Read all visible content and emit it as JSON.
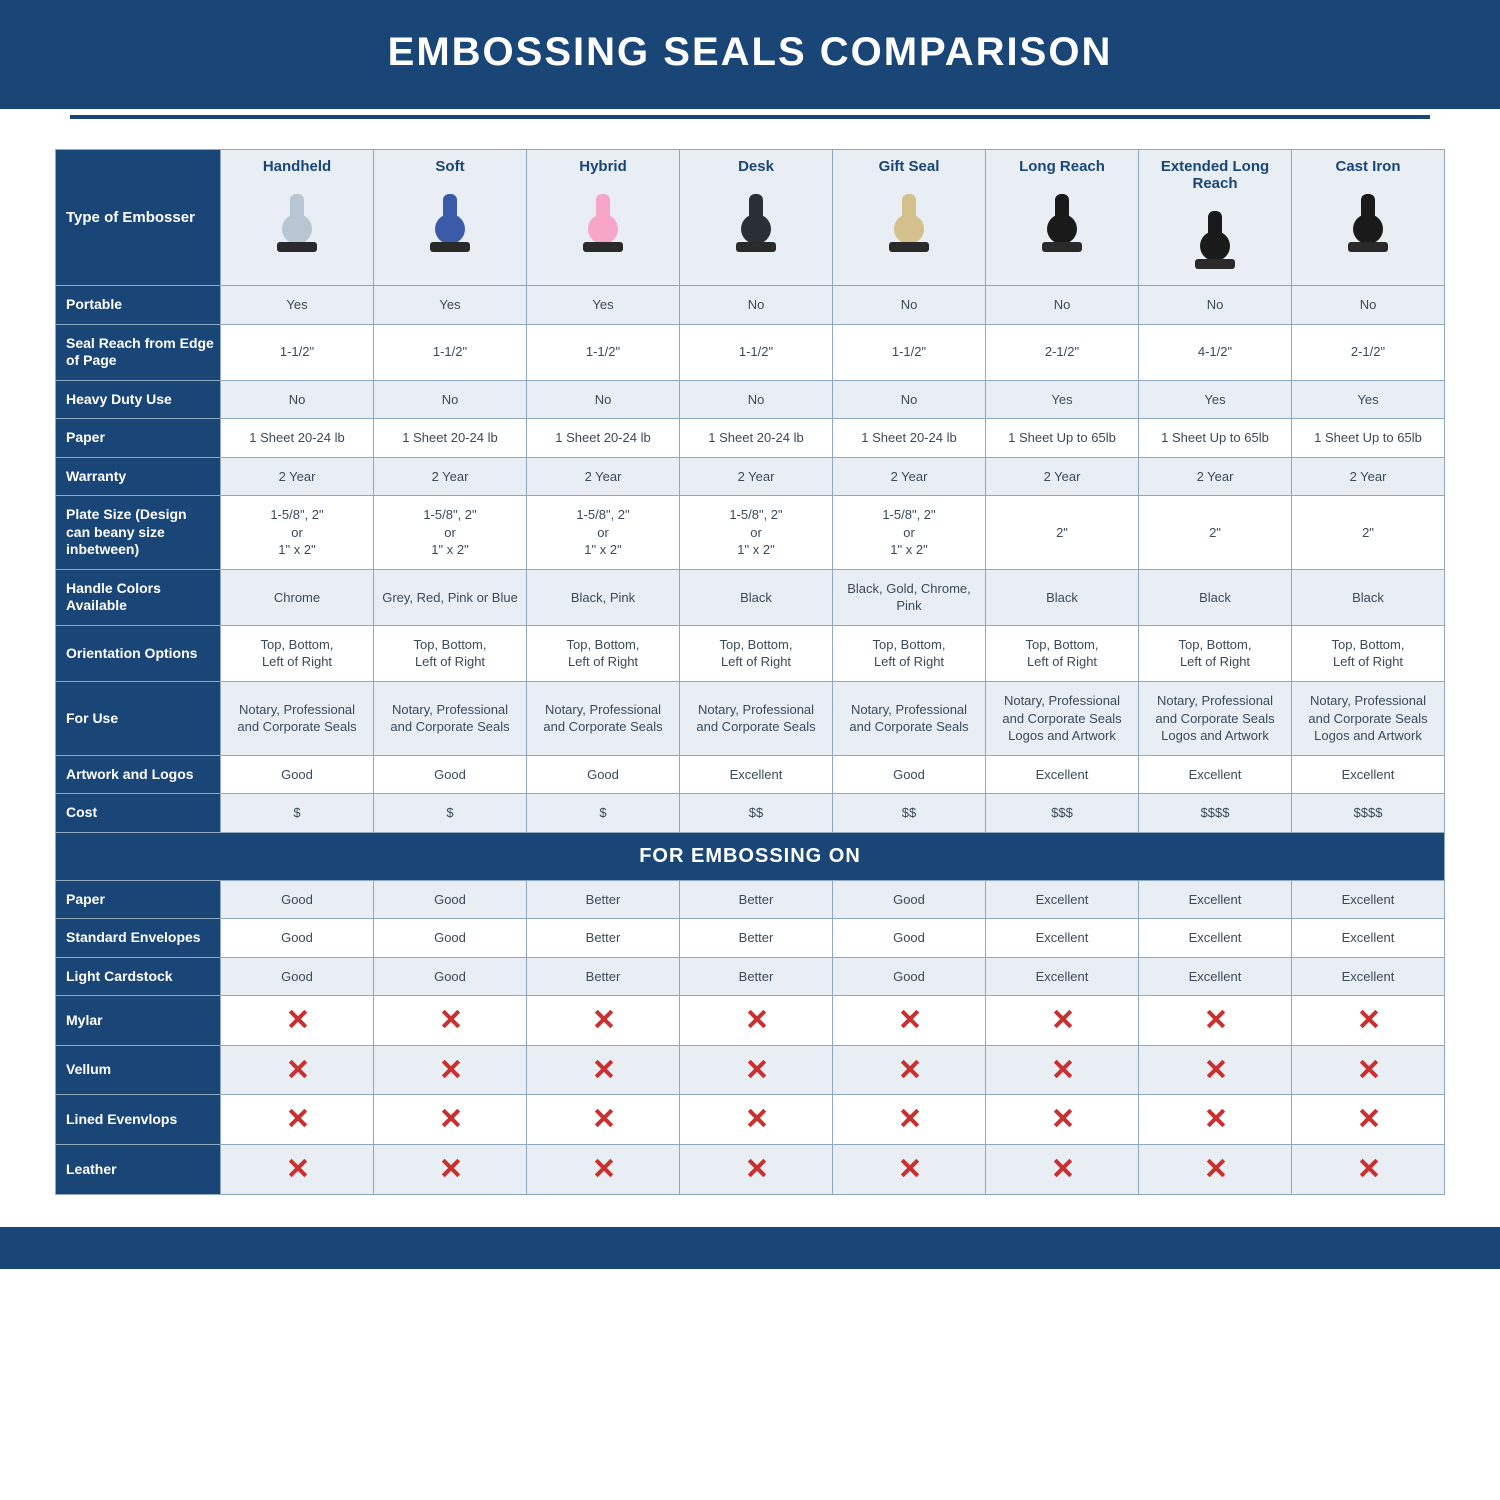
{
  "title": "EMBOSSING SEALS COMPARISON",
  "section_label": "FOR EMBOSSING ON",
  "colors": {
    "brand": "#1a4677",
    "header_bg": "#e8eef4",
    "alt_row_bg": "#e8eef4",
    "border": "#8ea8bf",
    "text": "#3a4a5a",
    "x_red": "#c93030"
  },
  "columns": [
    {
      "id": "handheld",
      "label": "Handheld",
      "icon_color": "#b8c6d4"
    },
    {
      "id": "soft",
      "label": "Soft",
      "icon_color": "#3b5ba8"
    },
    {
      "id": "hybrid",
      "label": "Hybrid",
      "icon_color": "#f7a6c8"
    },
    {
      "id": "desk",
      "label": "Desk",
      "icon_color": "#2a2f35"
    },
    {
      "id": "gift",
      "label": "Gift Seal",
      "icon_color": "#d4c08c"
    },
    {
      "id": "long",
      "label": "Long Reach",
      "icon_color": "#1a1a1a"
    },
    {
      "id": "xlong",
      "label": "Extended Long Reach",
      "icon_color": "#1a1a1a"
    },
    {
      "id": "cast",
      "label": "Cast Iron",
      "icon_color": "#1a1a1a"
    }
  ],
  "row_header_label": "Type of Embosser",
  "rows": [
    {
      "label": "Portable",
      "alt": true,
      "cells": [
        "Yes",
        "Yes",
        "Yes",
        "No",
        "No",
        "No",
        "No",
        "No"
      ]
    },
    {
      "label": "Seal Reach from Edge of Page",
      "alt": false,
      "cells": [
        "1-1/2\"",
        "1-1/2\"",
        "1-1/2\"",
        "1-1/2\"",
        "1-1/2\"",
        "2-1/2\"",
        "4-1/2\"",
        "2-1/2\""
      ]
    },
    {
      "label": "Heavy Duty Use",
      "alt": true,
      "cells": [
        "No",
        "No",
        "No",
        "No",
        "No",
        "Yes",
        "Yes",
        "Yes"
      ]
    },
    {
      "label": "Paper",
      "alt": false,
      "cells": [
        "1 Sheet 20-24 lb",
        "1 Sheet 20-24 lb",
        "1 Sheet 20-24 lb",
        "1 Sheet 20-24 lb",
        "1 Sheet 20-24 lb",
        "1 Sheet Up to 65lb",
        "1 Sheet Up to 65lb",
        "1 Sheet Up to 65lb"
      ]
    },
    {
      "label": "Warranty",
      "alt": true,
      "cells": [
        "2 Year",
        "2 Year",
        "2 Year",
        "2 Year",
        "2 Year",
        "2 Year",
        "2 Year",
        "2 Year"
      ]
    },
    {
      "label": "Plate Size (Design can beany size inbetween)",
      "alt": false,
      "cells": [
        "1-5/8\", 2\"\nor\n1\" x 2\"",
        "1-5/8\", 2\"\nor\n1\" x 2\"",
        "1-5/8\", 2\"\nor\n1\" x 2\"",
        "1-5/8\", 2\"\nor\n1\" x 2\"",
        "1-5/8\", 2\"\nor\n1\" x 2\"",
        "2\"",
        "2\"",
        "2\""
      ]
    },
    {
      "label": "Handle Colors Available",
      "alt": true,
      "cells": [
        "Chrome",
        "Grey, Red, Pink or Blue",
        "Black, Pink",
        "Black",
        "Black, Gold, Chrome, Pink",
        "Black",
        "Black",
        "Black"
      ]
    },
    {
      "label": "Orientation Options",
      "alt": false,
      "cells": [
        "Top, Bottom,\nLeft of Right",
        "Top, Bottom,\nLeft of Right",
        "Top, Bottom,\nLeft of Right",
        "Top, Bottom,\nLeft of Right",
        "Top, Bottom,\nLeft of Right",
        "Top, Bottom,\nLeft of Right",
        "Top, Bottom,\nLeft of Right",
        "Top, Bottom,\nLeft of Right"
      ]
    },
    {
      "label": "For Use",
      "alt": true,
      "cells": [
        "Notary, Professional and Corporate Seals",
        "Notary, Professional and Corporate Seals",
        "Notary, Professional and Corporate Seals",
        "Notary, Professional and Corporate Seals",
        "Notary, Professional and Corporate Seals",
        "Notary, Professional and Corporate Seals Logos and Artwork",
        "Notary, Professional and Corporate Seals Logos and Artwork",
        "Notary, Professional and Corporate Seals Logos and Artwork"
      ]
    },
    {
      "label": "Artwork and Logos",
      "alt": false,
      "cells": [
        "Good",
        "Good",
        "Good",
        "Excellent",
        "Good",
        "Excellent",
        "Excellent",
        "Excellent"
      ]
    },
    {
      "label": "Cost",
      "alt": true,
      "cells": [
        "$",
        "$",
        "$",
        "$$",
        "$$",
        "$$$",
        "$$$$",
        "$$$$"
      ]
    }
  ],
  "material_rows": [
    {
      "label": "Paper",
      "alt": true,
      "cells": [
        "Good",
        "Good",
        "Better",
        "Better",
        "Good",
        "Excellent",
        "Excellent",
        "Excellent"
      ]
    },
    {
      "label": "Standard Envelopes",
      "alt": false,
      "cells": [
        "Good",
        "Good",
        "Better",
        "Better",
        "Good",
        "Excellent",
        "Excellent",
        "Excellent"
      ]
    },
    {
      "label": "Light Cardstock",
      "alt": true,
      "cells": [
        "Good",
        "Good",
        "Better",
        "Better",
        "Good",
        "Excellent",
        "Excellent",
        "Excellent"
      ]
    },
    {
      "label": "Mylar",
      "alt": false,
      "cells": [
        "X",
        "X",
        "X",
        "X",
        "X",
        "X",
        "X",
        "X"
      ]
    },
    {
      "label": "Vellum",
      "alt": true,
      "cells": [
        "X",
        "X",
        "X",
        "X",
        "X",
        "X",
        "X",
        "X"
      ]
    },
    {
      "label": "Lined Evenvlops",
      "alt": false,
      "cells": [
        "X",
        "X",
        "X",
        "X",
        "X",
        "X",
        "X",
        "X"
      ]
    },
    {
      "label": "Leather",
      "alt": true,
      "cells": [
        "X",
        "X",
        "X",
        "X",
        "X",
        "X",
        "X",
        "X"
      ]
    }
  ]
}
